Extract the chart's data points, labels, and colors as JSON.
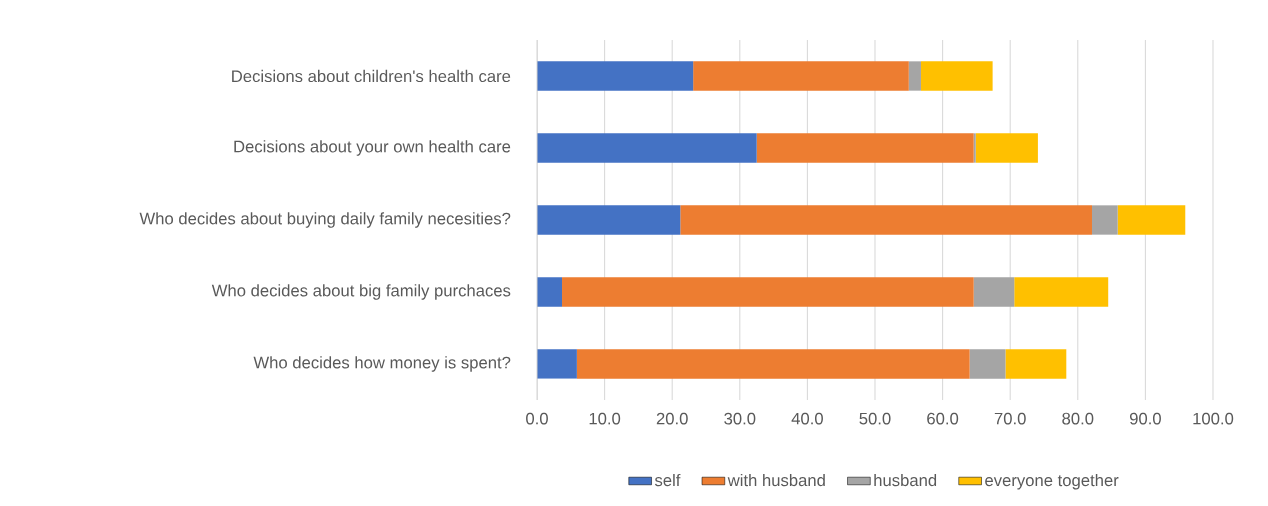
{
  "chart_data": {
    "type": "bar",
    "orientation": "horizontal",
    "stacked": true,
    "categories": [
      "Decisions about children's health care",
      "Decisions about your own health care",
      "Who decides about buying daily family necesities?",
      "Who decides about big family purchaces",
      "Who decides how money is spent?"
    ],
    "series": [
      {
        "name": "self",
        "color": "#4472c4",
        "values": [
          23.1,
          32.5,
          21.2,
          3.7,
          5.9
        ]
      },
      {
        "name": "with husband",
        "color": "#ed7d31",
        "values": [
          31.9,
          32.1,
          60.9,
          60.9,
          58.1
        ]
      },
      {
        "name": "husband",
        "color": "#a5a5a5",
        "values": [
          1.8,
          0.3,
          3.8,
          6.0,
          5.3
        ]
      },
      {
        "name": "everyone together",
        "color": "#ffc000",
        "values": [
          10.6,
          9.2,
          10.0,
          13.9,
          9.0
        ]
      }
    ],
    "xlim": [
      0,
      100
    ],
    "xticks": [
      {
        "value": 0,
        "label": "0.0"
      },
      {
        "value": 10,
        "label": "10.0"
      },
      {
        "value": 20,
        "label": "20.0"
      },
      {
        "value": 30,
        "label": "30.0"
      },
      {
        "value": 40,
        "label": "40.0"
      },
      {
        "value": 50,
        "label": "50.0"
      },
      {
        "value": 60,
        "label": "60.0"
      },
      {
        "value": 70,
        "label": "70.0"
      },
      {
        "value": 80,
        "label": "80.0"
      },
      {
        "value": 90,
        "label": "90.0"
      },
      {
        "value": 100,
        "label": "100.0"
      }
    ],
    "grid": "x",
    "legend": "bottom"
  }
}
